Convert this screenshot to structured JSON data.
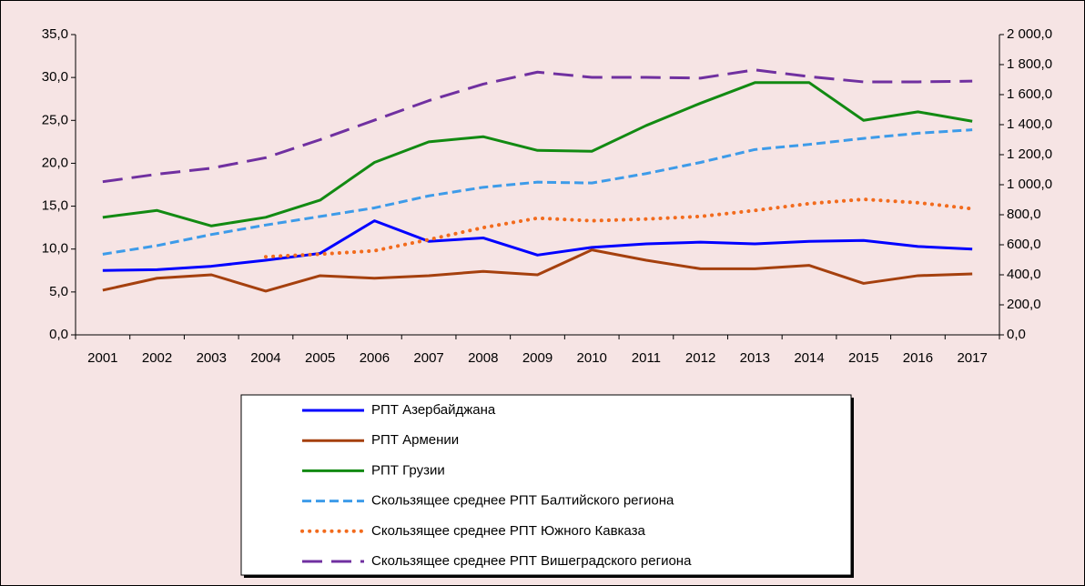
{
  "chart_data": {
    "type": "line",
    "categories": [
      "2001",
      "2002",
      "2003",
      "2004",
      "2005",
      "2006",
      "2007",
      "2008",
      "2009",
      "2010",
      "2011",
      "2012",
      "2013",
      "2014",
      "2015",
      "2016",
      "2017"
    ],
    "series": [
      {
        "name": "РПТ Азербайджана",
        "color": "#0000ff",
        "dash": "solid",
        "values": [
          7.5,
          7.6,
          8.0,
          8.7,
          9.5,
          13.3,
          10.9,
          11.3,
          9.3,
          10.2,
          10.6,
          10.8,
          10.6,
          10.9,
          11.0,
          10.3,
          10.0
        ]
      },
      {
        "name": "РПТ Армении",
        "color": "#a5400e",
        "dash": "solid",
        "values": [
          5.2,
          6.6,
          7.0,
          5.1,
          6.9,
          6.6,
          6.9,
          7.4,
          7.0,
          9.9,
          8.7,
          7.7,
          7.7,
          8.1,
          6.0,
          6.9,
          7.1
        ]
      },
      {
        "name": "РПТ Грузии",
        "color": "#128a12",
        "dash": "solid",
        "values": [
          13.7,
          14.5,
          12.7,
          13.7,
          15.7,
          20.1,
          22.5,
          23.1,
          21.5,
          21.4,
          24.4,
          27.0,
          29.4,
          29.4,
          25.0,
          26.0,
          24.9
        ]
      },
      {
        "name": "Скользящее среднее РПТ Балтийского региона",
        "color": "#3d9be9",
        "dash": "dash",
        "values": [
          9.4,
          10.4,
          11.7,
          12.8,
          13.8,
          14.8,
          16.2,
          17.2,
          17.8,
          17.7,
          18.8,
          20.1,
          21.6,
          22.2,
          22.9,
          23.5,
          23.9
        ]
      },
      {
        "name": "Скользящее среднее РПТ Южного Кавказа",
        "color": "#f26b1d",
        "dash": "dot",
        "values": [
          null,
          null,
          null,
          9.1,
          9.4,
          9.8,
          11.1,
          12.5,
          13.6,
          13.3,
          13.5,
          13.8,
          14.5,
          15.3,
          15.8,
          15.4,
          14.7
        ]
      },
      {
        "name": "Скользящее среднее РПТ Вишеградского региона",
        "color": "#7030a0",
        "dash": "longdash",
        "axis": "y2",
        "values": [
          1020,
          1070,
          1110,
          1180,
          1300,
          1430,
          1560,
          1670,
          1750,
          1715,
          1715,
          1710,
          1765,
          1720,
          1685,
          1685,
          1690
        ]
      }
    ],
    "ylim": [
      0,
      35
    ],
    "yticks": [
      {
        "value": 0,
        "label": "0,0"
      },
      {
        "value": 5,
        "label": "5,0"
      },
      {
        "value": 10,
        "label": "10,0"
      },
      {
        "value": 15,
        "label": "15,0"
      },
      {
        "value": 20,
        "label": "20,0"
      },
      {
        "value": 25,
        "label": "25,0"
      },
      {
        "value": 30,
        "label": "30,0"
      },
      {
        "value": 35,
        "label": "35,0"
      }
    ],
    "y2lim": [
      0,
      2000
    ],
    "y2ticks": [
      {
        "value": 0,
        "label": "0,0"
      },
      {
        "value": 200,
        "label": "200,0"
      },
      {
        "value": 400,
        "label": "400,0"
      },
      {
        "value": 600,
        "label": "600,0"
      },
      {
        "value": 800,
        "label": "800,0"
      },
      {
        "value": 1000,
        "label": "1 000,0"
      },
      {
        "value": 1200,
        "label": "1 200,0"
      },
      {
        "value": 1400,
        "label": "1 400,0"
      },
      {
        "value": 1600,
        "label": "1 600,0"
      },
      {
        "value": 1800,
        "label": "1 800,0"
      },
      {
        "value": 2000,
        "label": "2 000,0"
      }
    ],
    "legend": "bottom"
  }
}
